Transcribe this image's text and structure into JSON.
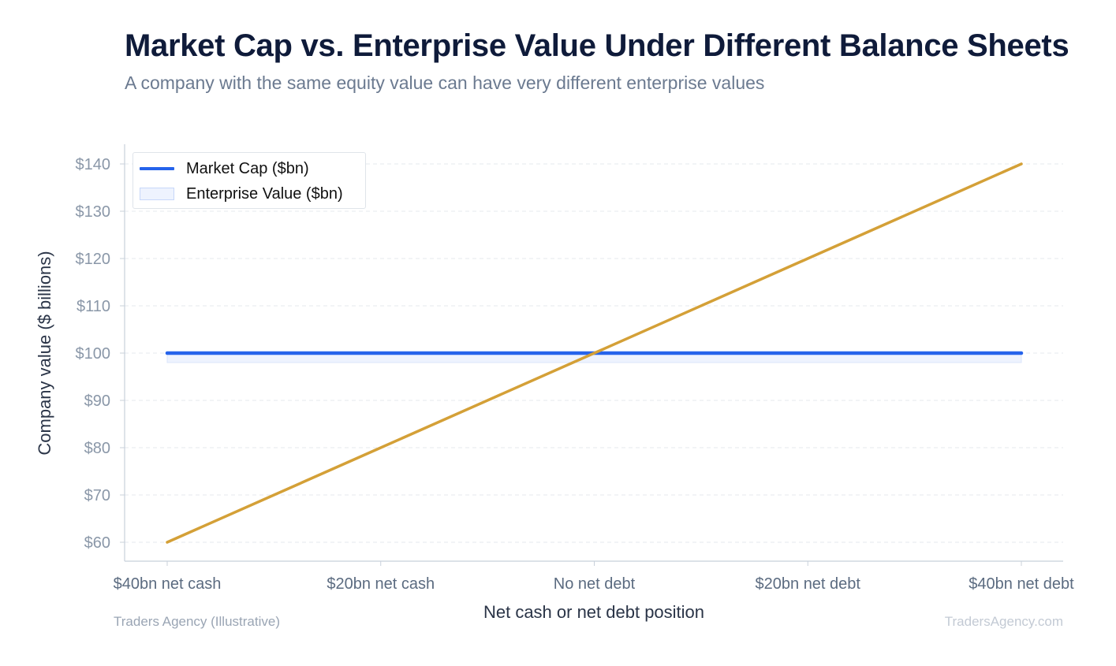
{
  "header": {
    "title": "Market Cap vs. Enterprise Value Under Different Balance Sheets",
    "subtitle": "A company with the same equity value can have very different enterprise values"
  },
  "footer": {
    "source": "Traders Agency (Illustrative)",
    "brand": "TradersAgency.com"
  },
  "colors": {
    "market_cap": "#2563eb",
    "enterprise_value": "#d4a037",
    "band_fill": "#eef3fe"
  },
  "chart_data": {
    "type": "line",
    "title": "Market Cap vs. Enterprise Value Under Different Balance Sheets",
    "subtitle": "A company with the same equity value can have very different enterprise values",
    "xlabel": "Net cash or net debt position",
    "ylabel": "Company value ($ billions)",
    "categories": [
      "$40bn net cash",
      "$20bn net cash",
      "No net debt",
      "$20bn net debt",
      "$40bn net debt"
    ],
    "series": [
      {
        "name": "Market Cap ($bn)",
        "values": [
          100,
          100,
          100,
          100,
          100
        ],
        "color": "#2563eb"
      },
      {
        "name": "Enterprise Value ($bn)",
        "values": [
          60,
          80,
          100,
          120,
          140
        ],
        "color": "#d4a037"
      }
    ],
    "ylim": [
      56,
      144
    ],
    "yticks": [
      60,
      70,
      80,
      90,
      100,
      110,
      120,
      130,
      140
    ],
    "ytick_labels": [
      "$60",
      "$70",
      "$80",
      "$90",
      "$100",
      "$110",
      "$120",
      "$130",
      "$140"
    ],
    "grid": true,
    "legend": "top-left"
  }
}
